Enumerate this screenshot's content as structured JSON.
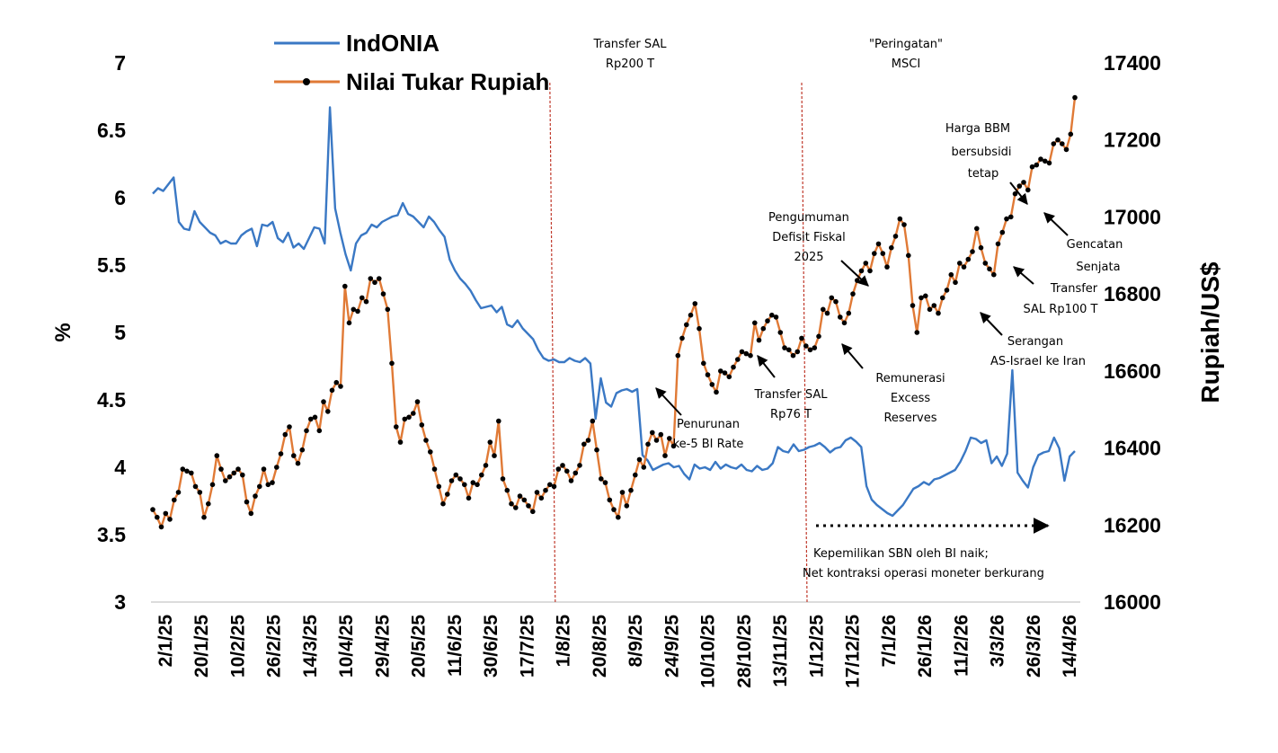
{
  "chart_data": {
    "type": "line",
    "title": "",
    "xlabel": "",
    "ylabel_left": "%",
    "ylabel_right": "Rupiah/US$",
    "ylim_left": [
      3,
      7
    ],
    "ylim_right": [
      16000,
      17400
    ],
    "yticks_left": [
      "3",
      "3.5",
      "4",
      "4.5",
      "5",
      "5.5",
      "6",
      "6.5",
      "7"
    ],
    "yticks_right": [
      "16000",
      "16200",
      "16400",
      "16600",
      "16800",
      "17000",
      "17200",
      "17400"
    ],
    "xticks": [
      "2/1/25",
      "20/1/25",
      "10/2/25",
      "26/2/25",
      "14/3/25",
      "10/4/25",
      "29/4/25",
      "20/5/25",
      "11/6/25",
      "30/6/25",
      "17/7/25",
      "1/8/25",
      "20/8/25",
      "8/9/25",
      "24/9/25",
      "10/10/25",
      "28/10/25",
      "13/11/25",
      "1/12/25",
      "17/12/25",
      "7/1/26",
      "26/1/26",
      "11/2/26",
      "3/3/26",
      "26/3/26",
      "14/4/26"
    ],
    "grid": false,
    "legend_position": "top-left",
    "series": [
      {
        "name": "IndONIA",
        "axis": "left",
        "color": "#3a78c4",
        "values": [
          6.03,
          6.07,
          6.05,
          6.1,
          6.15,
          5.82,
          5.77,
          5.76,
          5.9,
          5.82,
          5.78,
          5.74,
          5.72,
          5.66,
          5.68,
          5.66,
          5.66,
          5.72,
          5.75,
          5.77,
          5.64,
          5.8,
          5.79,
          5.82,
          5.7,
          5.67,
          5.74,
          5.63,
          5.66,
          5.62,
          5.7,
          5.78,
          5.77,
          5.66,
          6.67,
          5.92,
          5.74,
          5.58,
          5.46,
          5.66,
          5.72,
          5.74,
          5.8,
          5.78,
          5.82,
          5.84,
          5.86,
          5.87,
          5.96,
          5.88,
          5.86,
          5.82,
          5.78,
          5.86,
          5.82,
          5.76,
          5.71,
          5.54,
          5.46,
          5.4,
          5.36,
          5.31,
          5.24,
          5.18,
          5.19,
          5.2,
          5.15,
          5.19,
          5.06,
          5.04,
          5.09,
          5.03,
          4.99,
          4.95,
          4.87,
          4.81,
          4.79,
          4.8,
          4.78,
          4.78,
          4.81,
          4.79,
          4.78,
          4.81,
          4.77,
          4.36,
          4.66,
          4.48,
          4.45,
          4.55,
          4.57,
          4.58,
          4.56,
          4.58,
          4.09,
          4.05,
          3.98,
          4.0,
          4.02,
          4.03,
          4.0,
          4.01,
          3.95,
          3.91,
          4.02,
          3.99,
          4.0,
          3.98,
          4.04,
          3.99,
          4.02,
          4.0,
          3.99,
          4.02,
          3.98,
          3.97,
          4.01,
          3.98,
          3.99,
          4.03,
          4.15,
          4.12,
          4.11,
          4.17,
          4.12,
          4.13,
          4.15,
          4.16,
          4.18,
          4.15,
          4.11,
          4.14,
          4.15,
          4.2,
          4.22,
          4.19,
          4.15,
          3.86,
          3.76,
          3.72,
          3.69,
          3.66,
          3.64,
          3.68,
          3.72,
          3.78,
          3.84,
          3.86,
          3.89,
          3.87,
          3.91,
          3.92,
          3.94,
          3.96,
          3.98,
          4.04,
          4.12,
          4.22,
          4.21,
          4.18,
          4.2,
          4.03,
          4.08,
          4.01,
          4.1,
          4.72,
          3.96,
          3.9,
          3.85,
          4.0,
          4.09,
          4.11,
          4.12,
          4.22,
          4.14,
          3.9,
          4.08,
          4.12
        ]
      },
      {
        "name": "Nilai Tukar Rupiah",
        "axis": "right",
        "color": "#e07a36",
        "marker_color": "#000000",
        "values": [
          16240,
          16220,
          16195,
          16230,
          16215,
          16265,
          16285,
          16345,
          16340,
          16335,
          16300,
          16285,
          16220,
          16255,
          16305,
          16380,
          16345,
          16315,
          16325,
          16335,
          16345,
          16330,
          16260,
          16230,
          16275,
          16300,
          16345,
          16305,
          16310,
          16350,
          16385,
          16435,
          16455,
          16380,
          16360,
          16395,
          16445,
          16475,
          16480,
          16445,
          16520,
          16495,
          16550,
          16570,
          16560,
          16820,
          16725,
          16760,
          16755,
          16790,
          16780,
          16840,
          16830,
          16840,
          16800,
          16760,
          16620,
          16455,
          16415,
          16475,
          16480,
          16490,
          16520,
          16460,
          16420,
          16390,
          16345,
          16300,
          16255,
          16280,
          16315,
          16330,
          16320,
          16305,
          16270,
          16310,
          16305,
          16330,
          16355,
          16415,
          16380,
          16470,
          16320,
          16290,
          16255,
          16245,
          16275,
          16265,
          16250,
          16235,
          16285,
          16270,
          16290,
          16305,
          16300,
          16345,
          16355,
          16340,
          16315,
          16335,
          16355,
          16410,
          16420,
          16470,
          16395,
          16320,
          16310,
          16265,
          16240,
          16220,
          16285,
          16250,
          16290,
          16330,
          16370,
          16350,
          16410,
          16440,
          16420,
          16435,
          16380,
          16425,
          16405,
          16640,
          16685,
          16720,
          16745,
          16775,
          16710,
          16620,
          16590,
          16565,
          16545,
          16600,
          16595,
          16585,
          16610,
          16630,
          16650,
          16645,
          16640,
          16725,
          16680,
          16710,
          16730,
          16745,
          16740,
          16700,
          16660,
          16655,
          16640,
          16650,
          16685,
          16665,
          16655,
          16660,
          16690,
          16760,
          16750,
          16790,
          16780,
          16740,
          16725,
          16750,
          16800,
          16835,
          16860,
          16880,
          16860,
          16905,
          16930,
          16905,
          16870,
          16920,
          16950,
          16995,
          16980,
          16900,
          16770,
          16700,
          16790,
          16795,
          16760,
          16770,
          16750,
          16790,
          16810,
          16850,
          16830,
          16880,
          16870,
          16890,
          16910,
          16970,
          16920,
          16880,
          16865,
          16850,
          16930,
          16960,
          16995,
          17000,
          17060,
          17080,
          17090,
          17070,
          17130,
          17135,
          17150,
          17145,
          17140,
          17190,
          17200,
          17190,
          17175,
          17215,
          17310
        ]
      }
    ],
    "vlines": [
      {
        "label": "Transfer SAL Rp200 T",
        "index": 93
      },
      {
        "label": "\"Peringatan\" MSCI",
        "index": 152
      }
    ],
    "annotations": [
      "Transfer SAL",
      "Rp200 T",
      "\"Peringatan\"",
      "MSCI",
      "Penurunan",
      "ke-5 BI Rate",
      "Transfer SAL",
      "Rp76  T",
      "Pengumuman",
      "Defisit Fiskal",
      "2025",
      "Remunerasi",
      "Excess",
      "Reserves",
      "Harga BBM",
      "bersubsidi",
      "tetap",
      "Gencatan",
      "Senjata",
      "Transfer",
      "SAL Rp100 T",
      "Serangan",
      "AS-Israel ke Iran",
      "Kepemilikan SBN oleh BI naik;",
      "Net kontraksi operasi  moneter berkurang"
    ]
  }
}
